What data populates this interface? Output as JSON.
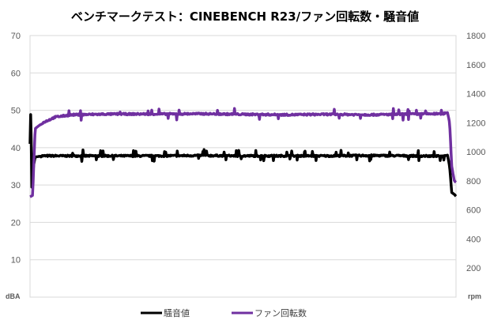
{
  "chart_data": {
    "type": "line",
    "title": "ベンチマークテスト：CINEBENCH R23/ファン回転数・騒音値",
    "x": {
      "range": [
        0,
        100
      ],
      "ticks_shown": false
    },
    "y_left": {
      "unit_label": "dBA",
      "range": [
        0,
        70
      ],
      "ticks": [
        10,
        20,
        30,
        40,
        50,
        60,
        70
      ]
    },
    "y_right": {
      "unit_label": "rpm",
      "range": [
        0,
        1800
      ],
      "ticks": [
        200,
        400,
        600,
        800,
        1000,
        1200,
        1400,
        1600,
        1800
      ]
    },
    "grid": {
      "horizontal": true,
      "vertical": false
    },
    "legend_position": "bottom",
    "series": [
      {
        "name": "騒音値",
        "axis": "left",
        "color": "#000000",
        "points": [
          [
            0,
            41
          ],
          [
            0.2,
            52
          ],
          [
            0.4,
            29
          ],
          [
            0.8,
            35
          ],
          [
            1.2,
            37.5
          ],
          [
            3,
            37.8
          ],
          [
            10,
            37.8
          ],
          [
            20,
            37.8
          ],
          [
            30,
            37.8
          ],
          [
            40,
            37.9
          ],
          [
            50,
            37.8
          ],
          [
            60,
            37.8
          ],
          [
            70,
            37.8
          ],
          [
            80,
            37.9
          ],
          [
            90,
            37.8
          ],
          [
            97,
            37.7
          ],
          [
            98,
            38
          ],
          [
            98.5,
            35
          ],
          [
            99,
            28
          ],
          [
            99.6,
            27.5
          ],
          [
            100,
            27
          ]
        ],
        "approximate_level": 37.8
      },
      {
        "name": "ファン回転数",
        "axis": "right",
        "color": "#7030A0",
        "points": [
          [
            0,
            690
          ],
          [
            0.6,
            700
          ],
          [
            1.2,
            1160
          ],
          [
            3,
            1200
          ],
          [
            6,
            1240
          ],
          [
            10,
            1255
          ],
          [
            20,
            1260
          ],
          [
            30,
            1260
          ],
          [
            40,
            1262
          ],
          [
            50,
            1258
          ],
          [
            60,
            1255
          ],
          [
            70,
            1258
          ],
          [
            80,
            1255
          ],
          [
            90,
            1260
          ],
          [
            97,
            1262
          ],
          [
            98,
            1270
          ],
          [
            98.5,
            1200
          ],
          [
            99,
            900
          ],
          [
            99.6,
            800
          ],
          [
            100,
            790
          ]
        ],
        "approximate_level": 1258
      }
    ],
    "legend": [
      {
        "label": "騒音値",
        "color": "#000000"
      },
      {
        "label": "ファン回転数",
        "color": "#7030A0"
      }
    ]
  }
}
